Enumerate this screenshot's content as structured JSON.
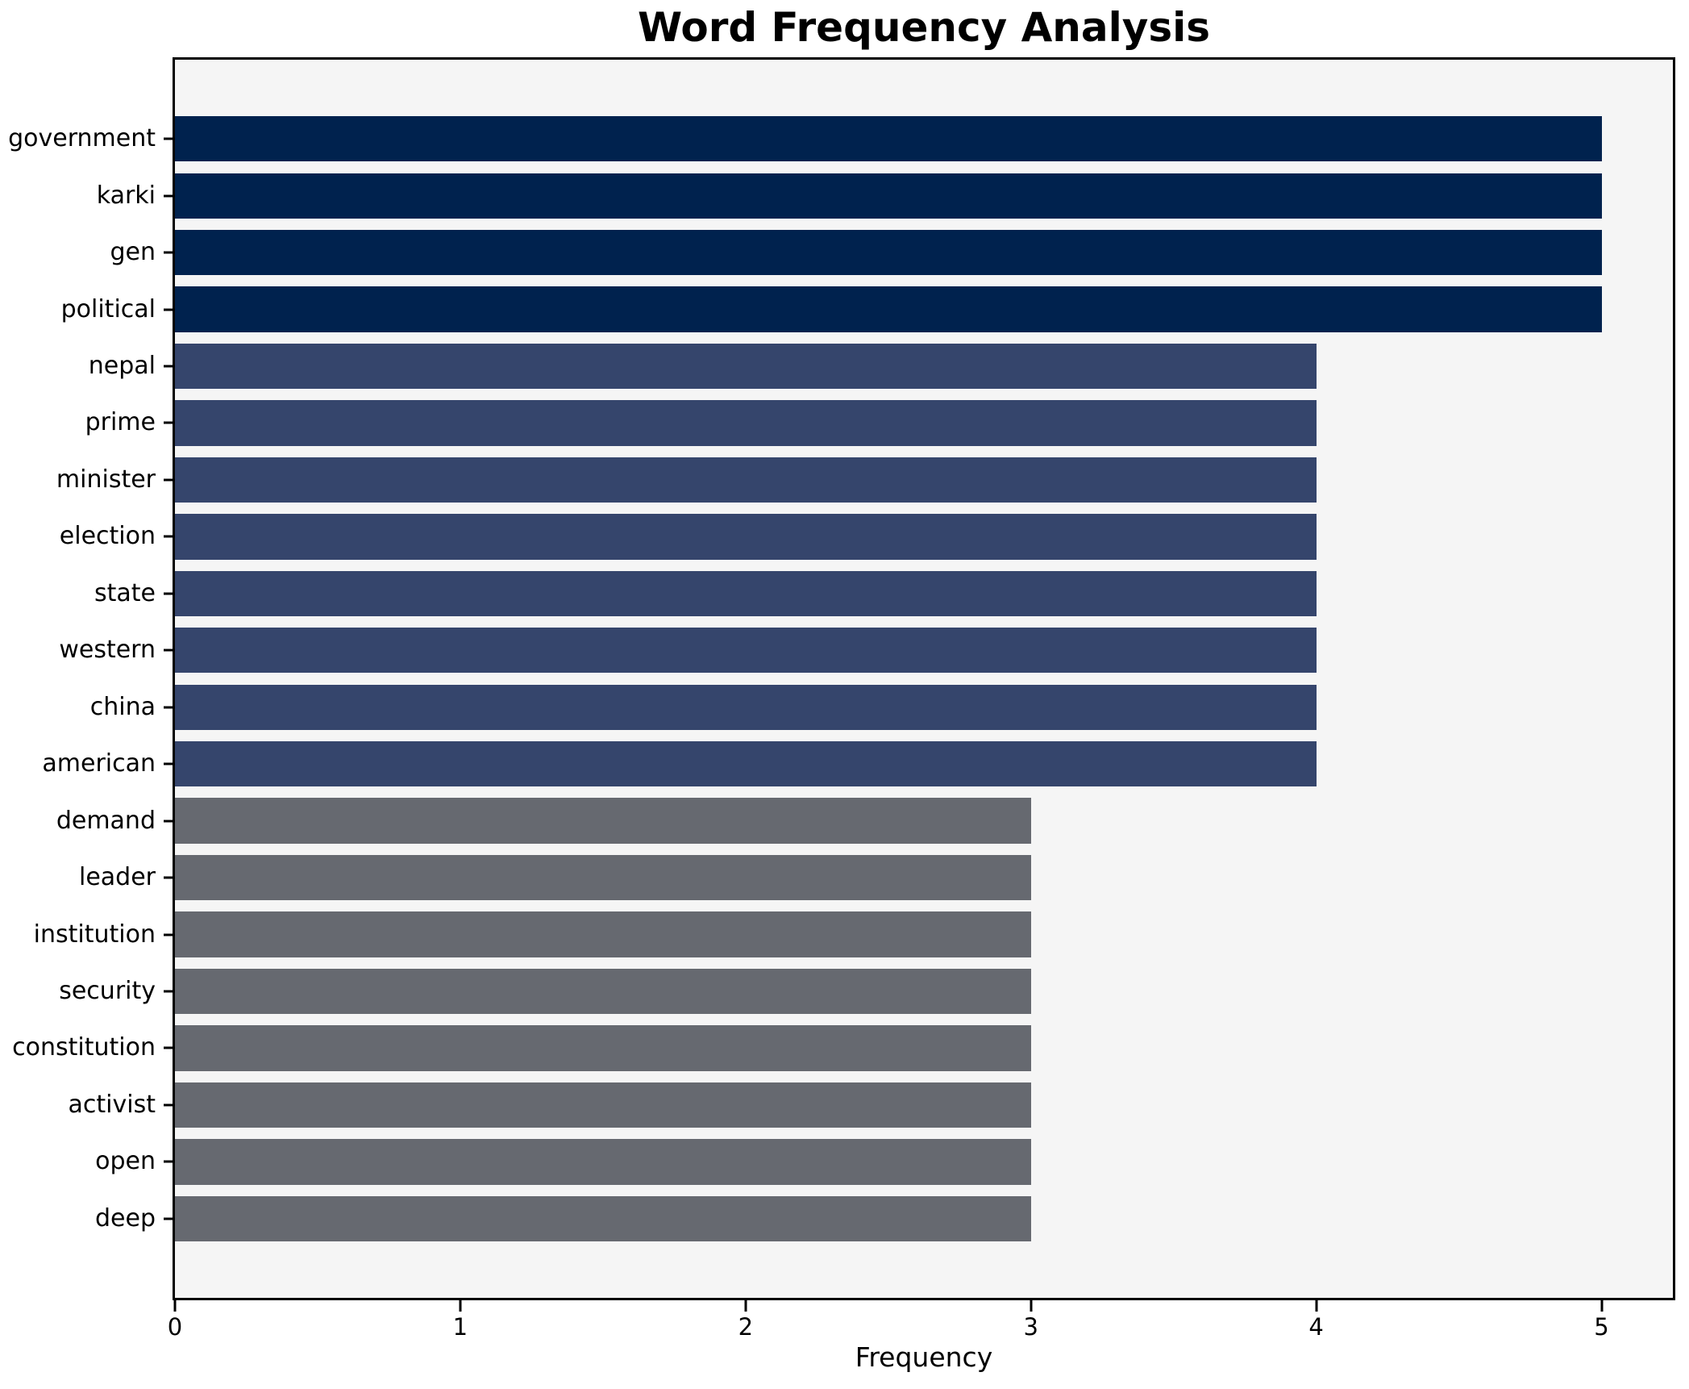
{
  "chart_data": {
    "type": "bar",
    "orientation": "horizontal",
    "title": "Word Frequency Analysis",
    "xlabel": "Frequency",
    "categories": [
      "government",
      "karki",
      "gen",
      "political",
      "nepal",
      "prime",
      "minister",
      "election",
      "state",
      "western",
      "china",
      "american",
      "demand",
      "leader",
      "institution",
      "security",
      "constitution",
      "activist",
      "open",
      "deep"
    ],
    "values": [
      5,
      5,
      5,
      5,
      4,
      4,
      4,
      4,
      4,
      4,
      4,
      4,
      3,
      3,
      3,
      3,
      3,
      3,
      3,
      3
    ],
    "xlim": [
      0,
      5.25
    ],
    "xticks": [
      0,
      1,
      2,
      3,
      4,
      5
    ],
    "grid": false,
    "legend_position": "none",
    "value_colors": {
      "5": "#00224e",
      "4": "#35456c",
      "3": "#666970"
    },
    "plot_background": "#f5f5f5",
    "figure_background": "#ffffff",
    "axis_color": "#000000"
  }
}
